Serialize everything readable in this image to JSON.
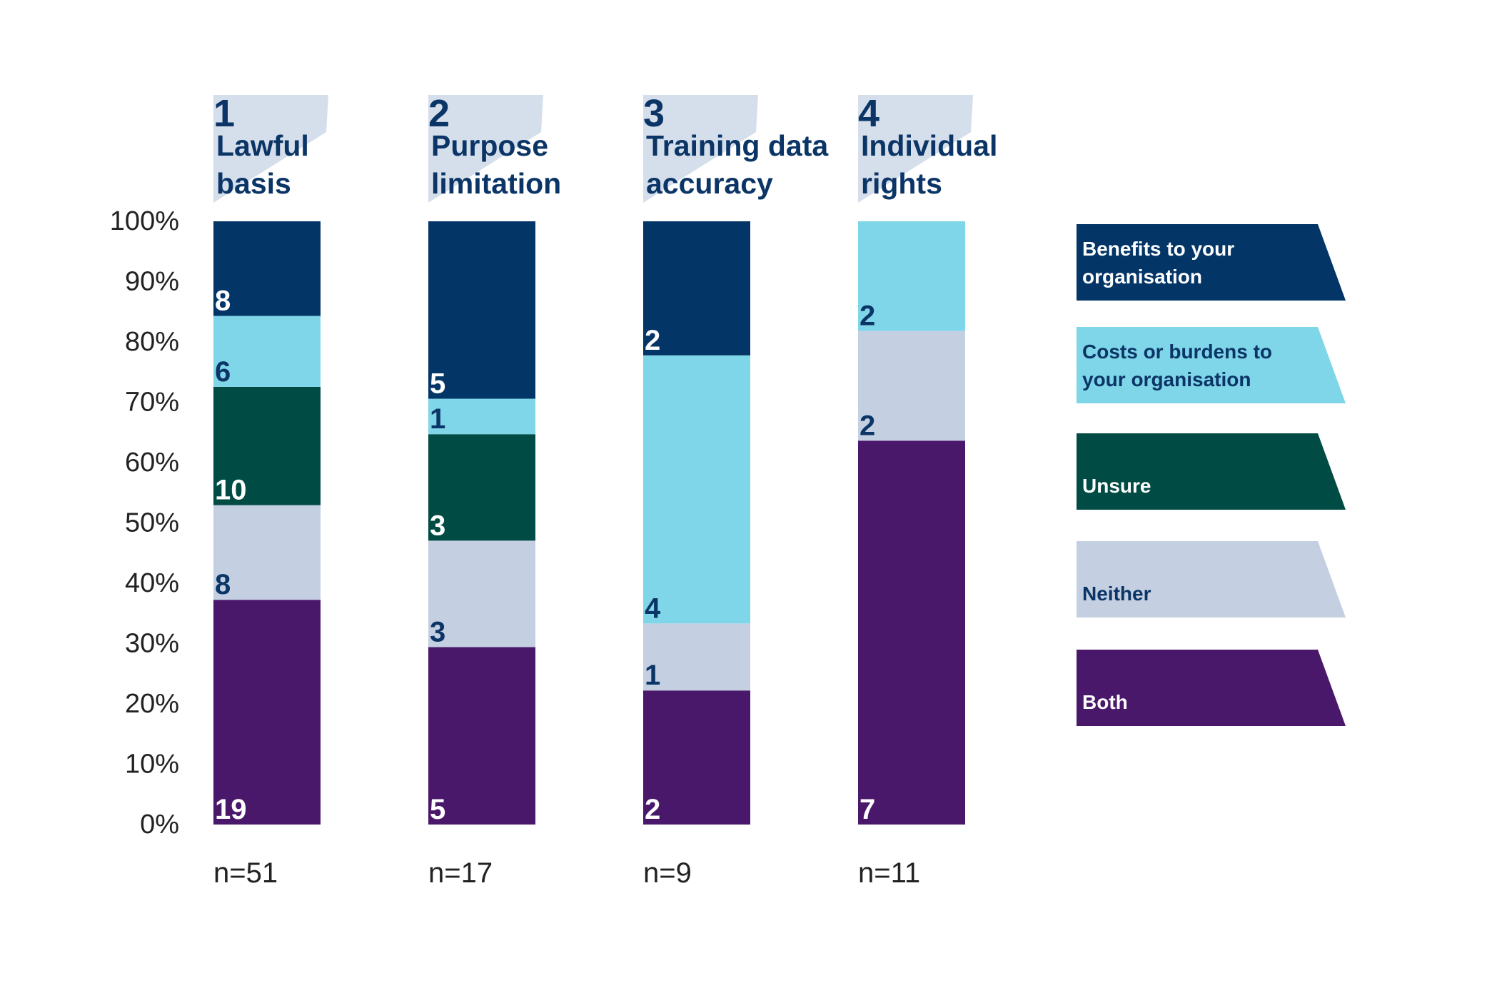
{
  "chart_data": {
    "type": "stacked_bar_percent",
    "category_numbers": [
      "1",
      "2",
      "3",
      "4"
    ],
    "categories": [
      "Lawful\nbasis",
      "Purpose\nlimitation",
      "Training data\naccuracy",
      "Individual\nrights"
    ],
    "n_labels": [
      "n=51",
      "n=17",
      "n=9",
      "n=11"
    ],
    "series": [
      {
        "name": "Both",
        "color": "#4a186a",
        "label_color": "#ffffff",
        "values": [
          19,
          5,
          2,
          7
        ]
      },
      {
        "name": "Neither",
        "color": "#c4d0e2",
        "label_color": "#0b3566",
        "values": [
          8,
          3,
          1,
          2
        ]
      },
      {
        "name": "Unsure",
        "color": "#004c45",
        "label_color": "#ffffff",
        "values": [
          10,
          3,
          null,
          null
        ]
      },
      {
        "name": "Costs or burdens to\nyour organisation",
        "color": "#7fd6e8",
        "label_color": "#0b3566",
        "values": [
          6,
          1,
          4,
          2
        ]
      },
      {
        "name": "Benefits to your\norganisation",
        "color": "#043567",
        "label_color": "#ffffff",
        "values": [
          8,
          5,
          2,
          null
        ]
      }
    ],
    "ylim": [
      0,
      100
    ],
    "yticks": [
      {
        "value": 0,
        "label": "0%"
      },
      {
        "value": 10,
        "label": "10%"
      },
      {
        "value": 20,
        "label": "20%"
      },
      {
        "value": 30,
        "label": "30%"
      },
      {
        "value": 40,
        "label": "40%"
      },
      {
        "value": 50,
        "label": "50%"
      },
      {
        "value": 60,
        "label": "60%"
      },
      {
        "value": 70,
        "label": "70%"
      },
      {
        "value": 80,
        "label": "80%"
      },
      {
        "value": 90,
        "label": "90%"
      },
      {
        "value": 100,
        "label": "100%"
      }
    ],
    "grid": false
  }
}
